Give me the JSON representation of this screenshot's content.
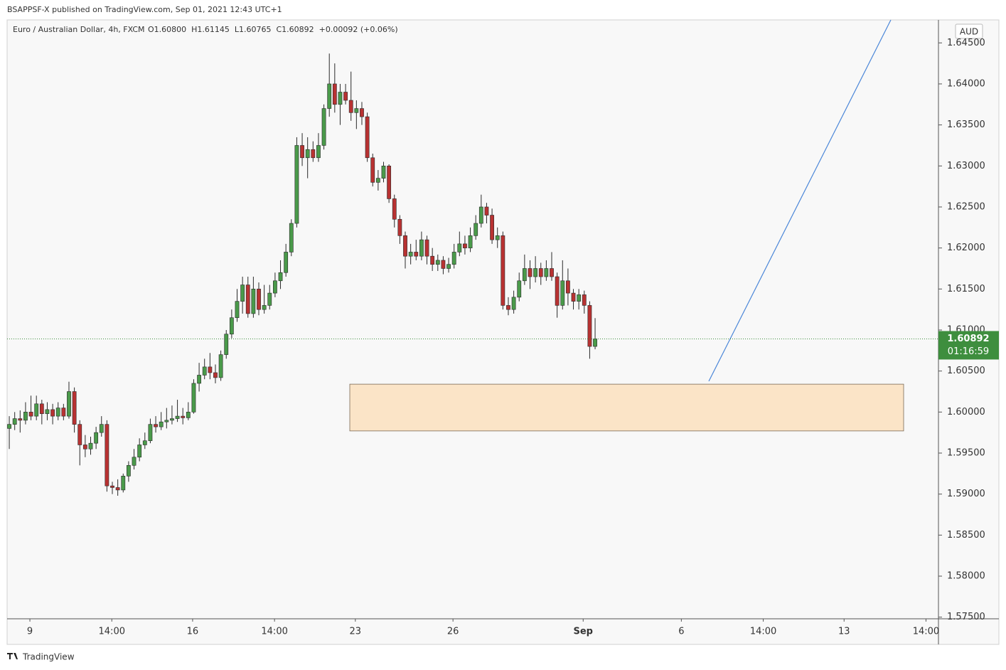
{
  "header": "BSAPPSF-X published on TradingView.com, Sep 01, 2021 12:43 UTC+1",
  "footer": "TradingView",
  "chart_data": {
    "type": "candlestick",
    "symbol": "Euro / Australian Dollar, 4h, FXCM",
    "legend_values": "O1.60800  H1.61145  L1.60765  C1.60892  +0.00092 (+0.06%)",
    "currency": "AUD",
    "last_price": 1.60892,
    "countdown": "01:16:59",
    "colors": {
      "up": "#4a9a4a",
      "down": "#b83232",
      "outline": "#2a2a2a",
      "zone": "#fbe4c7",
      "zone_border": "#7a6a55",
      "trend": "#4a86d8",
      "price_line": "#3e8e3e"
    },
    "zone_top": 1.6034,
    "zone_bottom": 1.5977,
    "ylim": [
      1.5748,
      1.6478
    ],
    "yticks": [
      {
        "value": 1.575,
        "label": "1.57500"
      },
      {
        "value": 1.58,
        "label": "1.58000"
      },
      {
        "value": 1.585,
        "label": "1.58500"
      },
      {
        "value": 1.59,
        "label": "1.59000"
      },
      {
        "value": 1.595,
        "label": "1.59500"
      },
      {
        "value": 1.6,
        "label": "1.60000"
      },
      {
        "value": 1.605,
        "label": "1.60500"
      },
      {
        "value": 1.61,
        "label": "1.61000"
      },
      {
        "value": 1.615,
        "label": "1.61500"
      },
      {
        "value": 1.62,
        "label": "1.62000"
      },
      {
        "value": 1.625,
        "label": "1.62500"
      },
      {
        "value": 1.63,
        "label": "1.63000"
      },
      {
        "value": 1.635,
        "label": "1.63500"
      },
      {
        "value": 1.64,
        "label": "1.64000"
      },
      {
        "value": 1.645,
        "label": "1.64500"
      }
    ],
    "xlim": [
      -0.4,
      171.3
    ],
    "xticks": [
      {
        "value": 3.8,
        "label": "9"
      },
      {
        "value": 18.9,
        "label": "14:00"
      },
      {
        "value": 33.8,
        "label": "16"
      },
      {
        "value": 48.9,
        "label": "14:00"
      },
      {
        "value": 63.8,
        "label": "23"
      },
      {
        "value": 81.8,
        "label": "26"
      },
      {
        "value": 105.8,
        "label": "Sep"
      },
      {
        "value": 123.9,
        "label": "6"
      },
      {
        "value": 139,
        "label": "14:00"
      },
      {
        "value": 153.9,
        "label": "13"
      },
      {
        "value": 169,
        "label": "14:00"
      }
    ],
    "ohlc": [
      [
        1.598,
        1.5995,
        1.5955,
        1.5985
      ],
      [
        1.5985,
        1.6,
        1.5978,
        1.5992
      ],
      [
        1.5992,
        1.6002,
        1.5975,
        1.599
      ],
      [
        1.599,
        1.6012,
        1.5985,
        1.6
      ],
      [
        1.6,
        1.602,
        1.599,
        1.5995
      ],
      [
        1.5995,
        1.602,
        1.599,
        1.601
      ],
      [
        1.601,
        1.6015,
        1.5985,
        1.5998
      ],
      [
        1.5998,
        1.6012,
        1.599,
        1.6003
      ],
      [
        1.6003,
        1.601,
        1.5985,
        1.5995
      ],
      [
        1.5995,
        1.6012,
        1.599,
        1.6005
      ],
      [
        1.6005,
        1.601,
        1.599,
        1.5995
      ],
      [
        1.5995,
        1.6037,
        1.5992,
        1.6025
      ],
      [
        1.6025,
        1.603,
        1.5975,
        1.5985
      ],
      [
        1.5985,
        1.599,
        1.5935,
        1.596
      ],
      [
        1.596,
        1.5972,
        1.5945,
        1.5955
      ],
      [
        1.5955,
        1.597,
        1.5948,
        1.5962
      ],
      [
        1.5962,
        1.5982,
        1.5955,
        1.5975
      ],
      [
        1.5975,
        1.5995,
        1.597,
        1.5985
      ],
      [
        1.5985,
        1.599,
        1.5903,
        1.591
      ],
      [
        1.591,
        1.5915,
        1.59,
        1.5908
      ],
      [
        1.5908,
        1.5918,
        1.5898,
        1.5905
      ],
      [
        1.5905,
        1.5925,
        1.5902,
        1.5922
      ],
      [
        1.5922,
        1.594,
        1.5915,
        1.5935
      ],
      [
        1.5935,
        1.5955,
        1.593,
        1.5945
      ],
      [
        1.5945,
        1.5968,
        1.594,
        1.596
      ],
      [
        1.596,
        1.5975,
        1.5955,
        1.5965
      ],
      [
        1.5965,
        1.5992,
        1.5962,
        1.5985
      ],
      [
        1.5985,
        1.5995,
        1.5975,
        1.5982
      ],
      [
        1.5982,
        1.6,
        1.5978,
        1.5988
      ],
      [
        1.5988,
        1.6005,
        1.598,
        1.599
      ],
      [
        1.599,
        1.6008,
        1.5985,
        1.5992
      ],
      [
        1.5992,
        1.6015,
        1.5988,
        1.5995
      ],
      [
        1.5995,
        1.6005,
        1.5985,
        1.5993
      ],
      [
        1.5993,
        1.6012,
        1.599,
        1.6
      ],
      [
        1.6,
        1.604,
        1.5998,
        1.6035
      ],
      [
        1.6035,
        1.606,
        1.6025,
        1.6045
      ],
      [
        1.6045,
        1.6065,
        1.604,
        1.6055
      ],
      [
        1.6055,
        1.6072,
        1.604,
        1.6048
      ],
      [
        1.6048,
        1.6058,
        1.6035,
        1.6042
      ],
      [
        1.6042,
        1.6075,
        1.6038,
        1.607
      ],
      [
        1.607,
        1.61,
        1.6065,
        1.6095
      ],
      [
        1.6095,
        1.6125,
        1.609,
        1.6115
      ],
      [
        1.6115,
        1.615,
        1.611,
        1.6135
      ],
      [
        1.6135,
        1.6165,
        1.612,
        1.6155
      ],
      [
        1.6155,
        1.6165,
        1.6115,
        1.612
      ],
      [
        1.612,
        1.6165,
        1.6115,
        1.615
      ],
      [
        1.615,
        1.6158,
        1.6118,
        1.6125
      ],
      [
        1.6125,
        1.6155,
        1.612,
        1.613
      ],
      [
        1.613,
        1.6155,
        1.6125,
        1.6145
      ],
      [
        1.6145,
        1.617,
        1.614,
        1.616
      ],
      [
        1.616,
        1.6185,
        1.615,
        1.617
      ],
      [
        1.617,
        1.6205,
        1.6165,
        1.6195
      ],
      [
        1.6195,
        1.6235,
        1.619,
        1.623
      ],
      [
        1.623,
        1.6335,
        1.6225,
        1.6325
      ],
      [
        1.6325,
        1.634,
        1.63,
        1.631
      ],
      [
        1.631,
        1.6335,
        1.6285,
        1.632
      ],
      [
        1.632,
        1.633,
        1.6305,
        1.631
      ],
      [
        1.631,
        1.634,
        1.6305,
        1.6325
      ],
      [
        1.6325,
        1.6375,
        1.632,
        1.637
      ],
      [
        1.637,
        1.6437,
        1.636,
        1.64
      ],
      [
        1.64,
        1.6425,
        1.6365,
        1.6375
      ],
      [
        1.6375,
        1.64,
        1.635,
        1.639
      ],
      [
        1.639,
        1.64,
        1.6375,
        1.638
      ],
      [
        1.638,
        1.6415,
        1.6355,
        1.6365
      ],
      [
        1.6365,
        1.638,
        1.6345,
        1.637
      ],
      [
        1.637,
        1.6378,
        1.635,
        1.636
      ],
      [
        1.636,
        1.6365,
        1.6305,
        1.631
      ],
      [
        1.631,
        1.6315,
        1.6275,
        1.628
      ],
      [
        1.628,
        1.6295,
        1.627,
        1.6285
      ],
      [
        1.6285,
        1.6305,
        1.628,
        1.63
      ],
      [
        1.63,
        1.6302,
        1.6255,
        1.626
      ],
      [
        1.626,
        1.6265,
        1.6225,
        1.6235
      ],
      [
        1.6235,
        1.624,
        1.6205,
        1.6215
      ],
      [
        1.6215,
        1.622,
        1.6175,
        1.619
      ],
      [
        1.619,
        1.6205,
        1.618,
        1.6195
      ],
      [
        1.6195,
        1.621,
        1.6185,
        1.619
      ],
      [
        1.619,
        1.622,
        1.6185,
        1.621
      ],
      [
        1.621,
        1.6215,
        1.618,
        1.619
      ],
      [
        1.619,
        1.62,
        1.6172,
        1.618
      ],
      [
        1.618,
        1.6192,
        1.6172,
        1.6185
      ],
      [
        1.6185,
        1.619,
        1.6168,
        1.6175
      ],
      [
        1.6175,
        1.6188,
        1.617,
        1.618
      ],
      [
        1.618,
        1.6205,
        1.6175,
        1.6195
      ],
      [
        1.6195,
        1.622,
        1.619,
        1.6205
      ],
      [
        1.6205,
        1.6215,
        1.6192,
        1.62
      ],
      [
        1.62,
        1.6225,
        1.6195,
        1.6215
      ],
      [
        1.6215,
        1.624,
        1.621,
        1.623
      ],
      [
        1.623,
        1.6265,
        1.6225,
        1.625
      ],
      [
        1.625,
        1.6255,
        1.623,
        1.624
      ],
      [
        1.624,
        1.6248,
        1.6205,
        1.621
      ],
      [
        1.621,
        1.6225,
        1.62,
        1.6215
      ],
      [
        1.6215,
        1.622,
        1.6125,
        1.613
      ],
      [
        1.613,
        1.614,
        1.6118,
        1.6125
      ],
      [
        1.6125,
        1.6148,
        1.612,
        1.614
      ],
      [
        1.614,
        1.617,
        1.6135,
        1.616
      ],
      [
        1.616,
        1.6192,
        1.6155,
        1.6175
      ],
      [
        1.6175,
        1.6185,
        1.615,
        1.6165
      ],
      [
        1.6165,
        1.619,
        1.6158,
        1.6175
      ],
      [
        1.6175,
        1.6182,
        1.6155,
        1.6165
      ],
      [
        1.6165,
        1.6185,
        1.616,
        1.6175
      ],
      [
        1.6175,
        1.6195,
        1.616,
        1.6165
      ],
      [
        1.6165,
        1.617,
        1.6115,
        1.613
      ],
      [
        1.613,
        1.6185,
        1.6125,
        1.616
      ],
      [
        1.616,
        1.6175,
        1.613,
        1.6145
      ],
      [
        1.6145,
        1.615,
        1.6125,
        1.6135
      ],
      [
        1.6135,
        1.615,
        1.6125,
        1.6143
      ],
      [
        1.6143,
        1.6148,
        1.612,
        1.613
      ],
      [
        1.613,
        1.6135,
        1.6065,
        1.608
      ],
      [
        1.608,
        1.61145,
        1.60765,
        1.60892
      ]
    ]
  }
}
